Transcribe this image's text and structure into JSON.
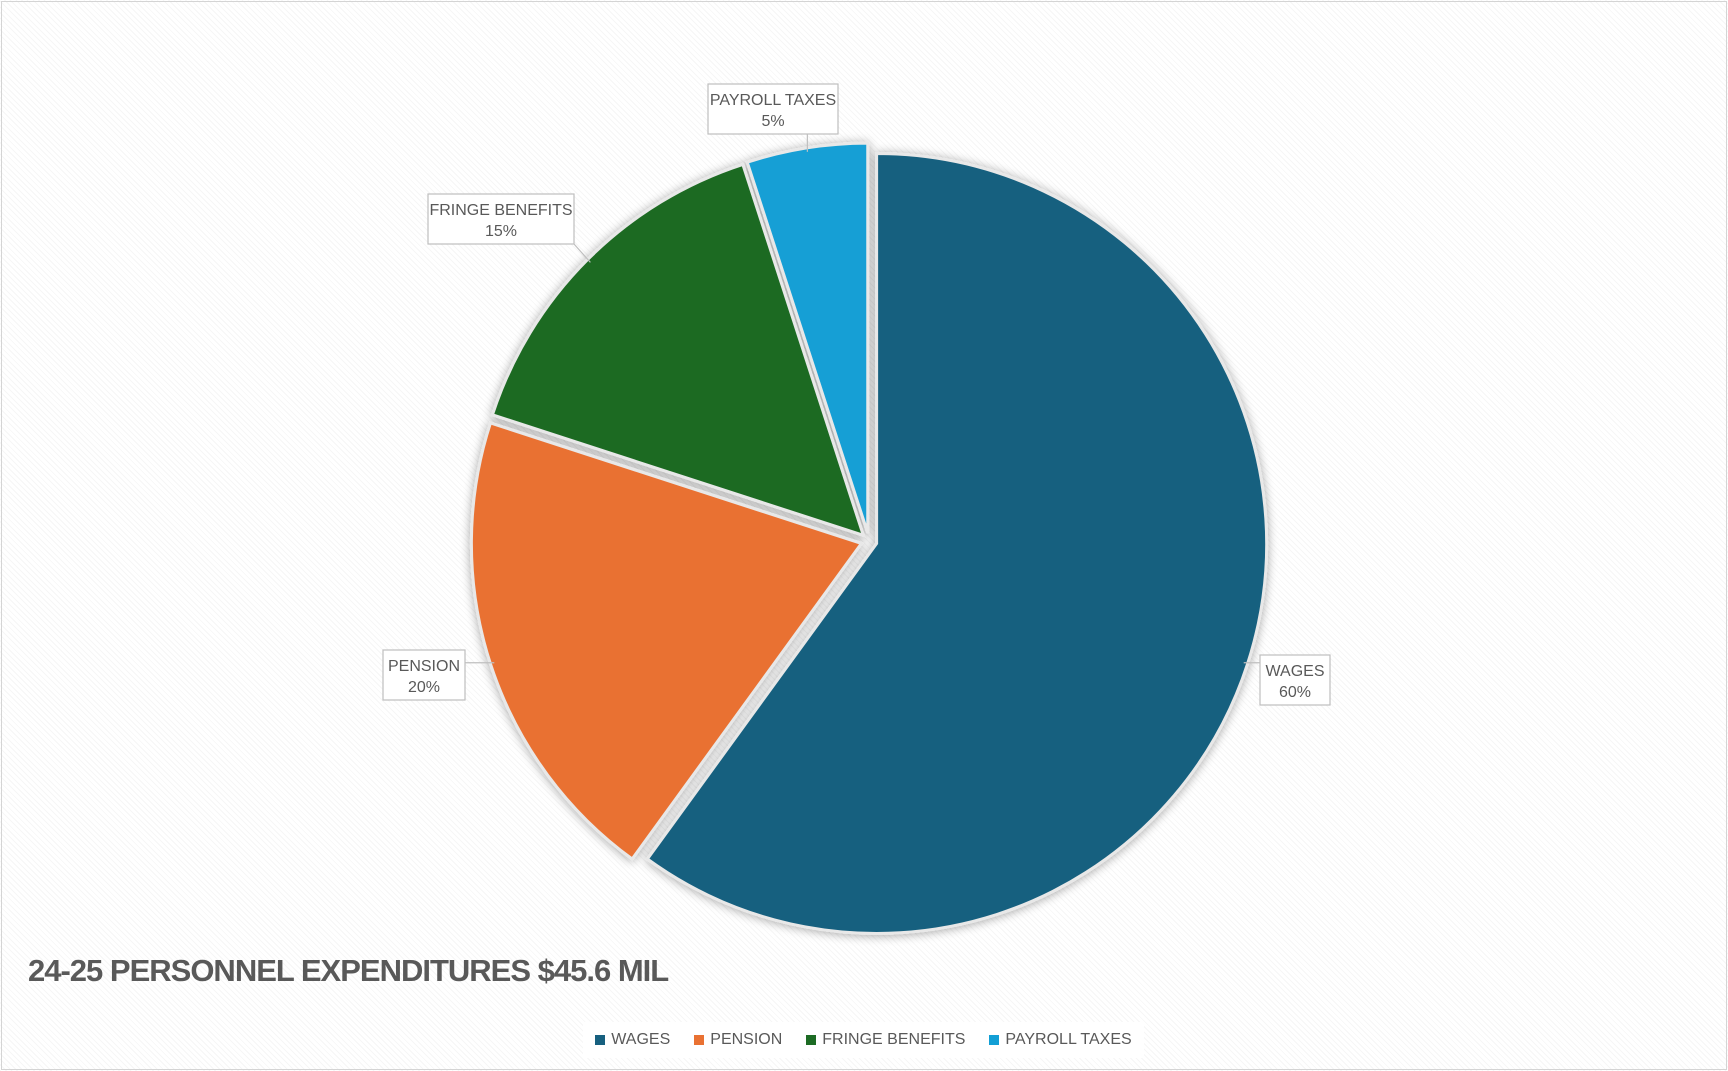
{
  "chart_data": {
    "type": "pie",
    "title": "24-25 PERSONNEL EXPENDITURES $45.6 MIL",
    "slices": [
      {
        "label": "WAGES",
        "value": 60,
        "value_label": "60%",
        "color": "#17607f"
      },
      {
        "label": "PENSION",
        "value": 20,
        "value_label": "20%",
        "color": "#e97132"
      },
      {
        "label": "FRINGE BENEFITS",
        "value": 15,
        "value_label": "15%",
        "color": "#1d6b24"
      },
      {
        "label": "PAYROLL TAXES",
        "value": 5,
        "value_label": "5%",
        "color": "#129fd5"
      }
    ],
    "start_angle": "12 o'clock",
    "direction": "clockwise",
    "exploded": true,
    "legend": {
      "position": "bottom",
      "items": [
        "WAGES",
        "PENSION",
        "FRINGE BENEFITS",
        "PAYROLL TAXES"
      ]
    },
    "data_labels": "callouts with category name and percentage"
  }
}
